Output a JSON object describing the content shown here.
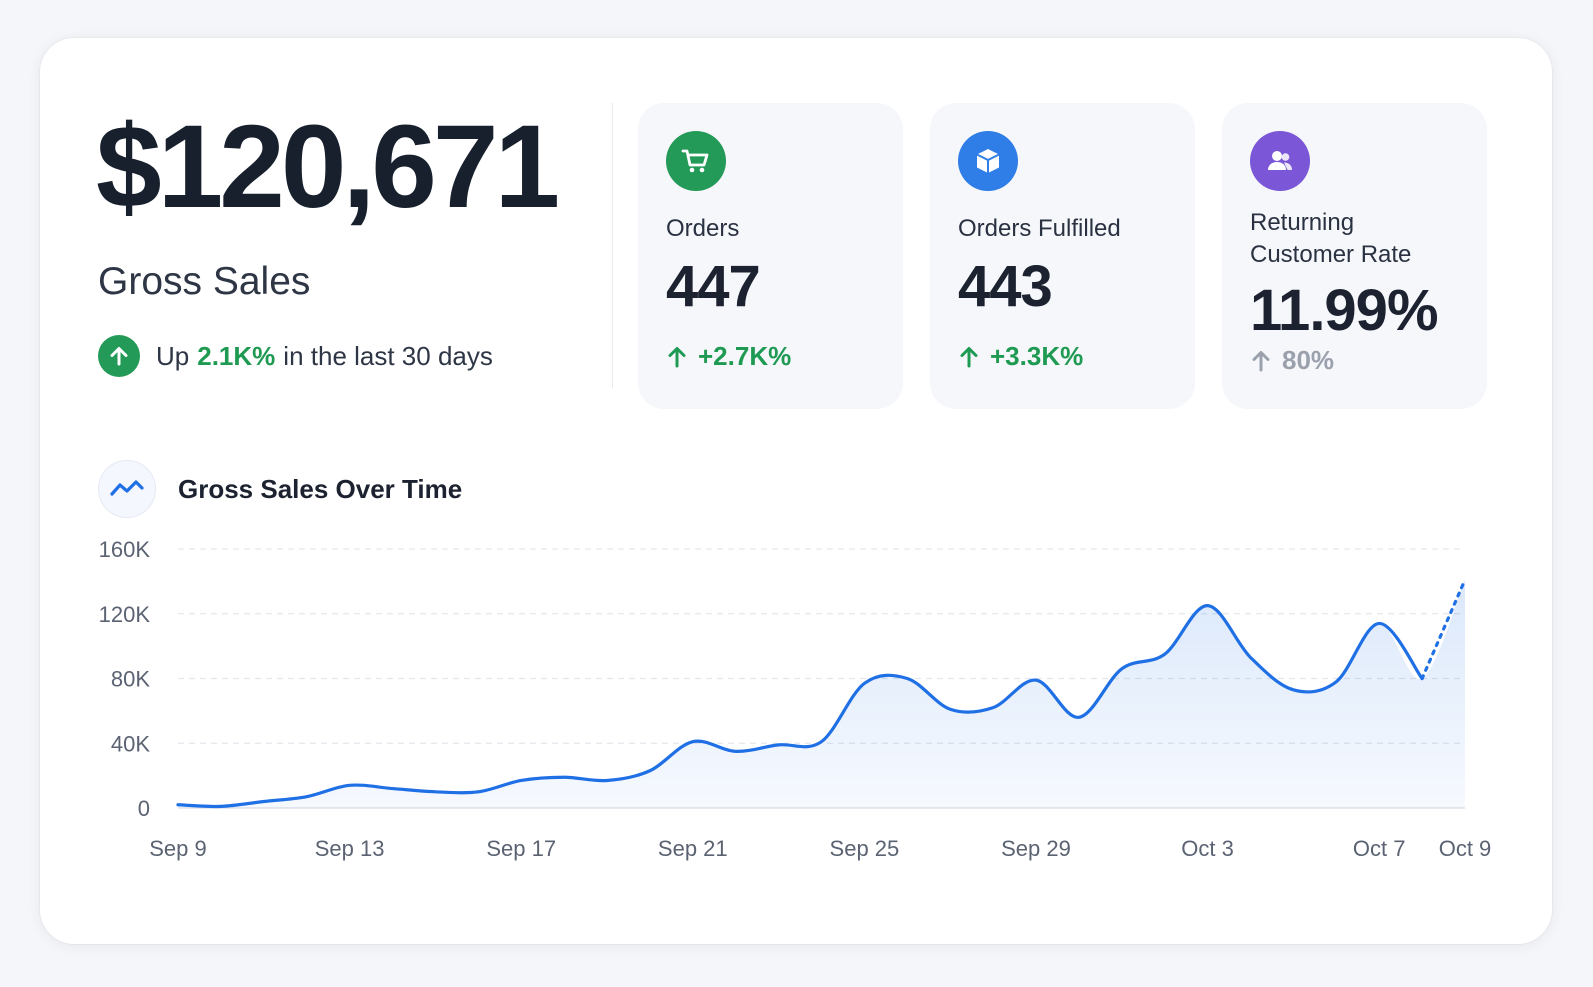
{
  "summary": {
    "amount": "$120,671",
    "label": "Gross Sales",
    "trend_prefix": "Up",
    "trend_value": "2.1K%",
    "trend_suffix": "in the last 30 days",
    "trend_icon": "arrow-up-circle-icon"
  },
  "kpis": [
    {
      "label": "Orders",
      "value": "447",
      "delta": "+2.7K%",
      "icon": "shopping-cart-icon",
      "icon_color": "#239a57",
      "delta_color": "#1f9a52"
    },
    {
      "label": "Orders Fulfilled",
      "value": "443",
      "delta": "+3.3K%",
      "icon": "package-box-icon",
      "icon_color": "#2f7de6",
      "delta_color": "#1f9a52"
    },
    {
      "label_line1": "Returning",
      "label_line2": "Customer Rate",
      "value": "11.99%",
      "delta": "80%",
      "icon": "users-icon",
      "icon_color": "#7b56d6",
      "delta_color": "#9ba1ac"
    }
  ],
  "chart": {
    "title": "Gross Sales Over Time",
    "icon": "trend-line-icon"
  },
  "chart_data": {
    "type": "area",
    "title": "Gross Sales Over Time",
    "xlabel": "",
    "ylabel": "",
    "ylim": [
      0,
      160000
    ],
    "yticks": [
      "0",
      "40K",
      "80K",
      "120K",
      "160K"
    ],
    "xticks": [
      "Sep 9",
      "Sep 13",
      "Sep 17",
      "Sep 21",
      "Sep 25",
      "Sep 29",
      "Oct 3",
      "Oct 7",
      "Oct 9"
    ],
    "grid": true,
    "line_color": "#1f6fe5",
    "x": [
      "Sep 9",
      "Sep 10",
      "Sep 11",
      "Sep 12",
      "Sep 13",
      "Sep 14",
      "Sep 15",
      "Sep 16",
      "Sep 17",
      "Sep 18",
      "Sep 19",
      "Sep 20",
      "Sep 21",
      "Sep 22",
      "Sep 23",
      "Sep 24",
      "Sep 25",
      "Sep 26",
      "Sep 27",
      "Sep 28",
      "Sep 29",
      "Sep 30",
      "Oct 1",
      "Oct 2",
      "Oct 3",
      "Oct 4",
      "Oct 5",
      "Oct 6",
      "Oct 7",
      "Oct 8",
      "Oct 9"
    ],
    "values": [
      2000,
      1000,
      4000,
      7000,
      14000,
      12000,
      10000,
      10000,
      17000,
      19000,
      17000,
      23000,
      41000,
      35000,
      39000,
      41000,
      77000,
      80000,
      61000,
      62000,
      79000,
      56000,
      86000,
      95000,
      125000,
      93000,
      73000,
      78000,
      114000,
      80000,
      141000
    ],
    "projected_from_index": 29
  }
}
